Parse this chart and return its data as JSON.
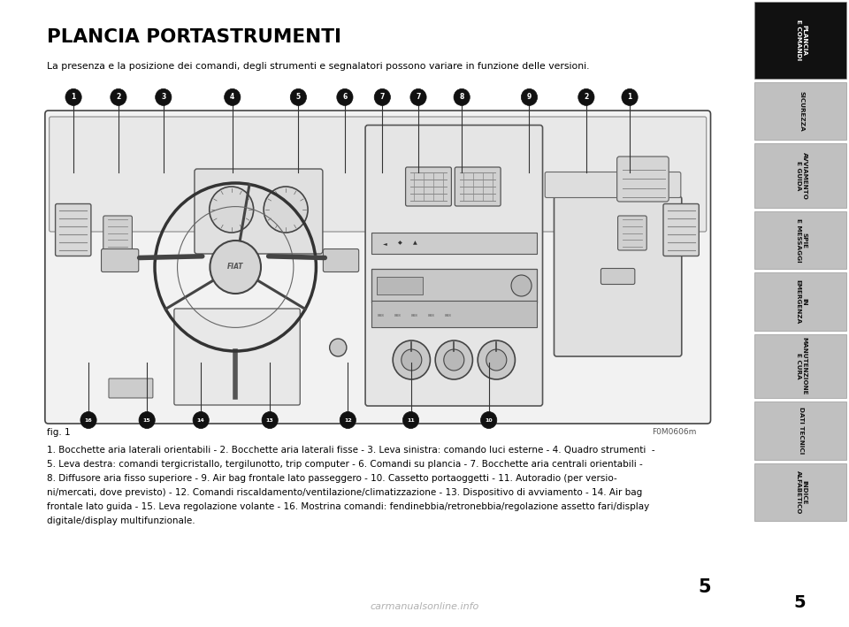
{
  "title": "PLANCIA PORTASTRUMENTI",
  "subtitle": "La presenza e la posizione dei comandi, degli strumenti e segnalatori possono variare in funzione delle versioni.",
  "fig_label": "fig. 1",
  "figure_code": "F0M0606m",
  "desc_line1": "1. Bocchette aria laterali orientabili - 2. Bocchette aria laterali fisse - 3. Leva sinistra: comando luci esterne - 4. Quadro strumenti  -",
  "desc_line2": "5. Leva destra: comandi tergicristallo, tergilunotto, trip computer - 6. Comandi su plancia - 7. Bocchette aria centrali orientabili -",
  "desc_line3": "8. Diffusore aria fisso superiore - 9. Air bag frontale lato passeggero - 10. Cassetto portaoggetti - 11. Autoradio (per versio-",
  "desc_line4": "ni/mercati, dove previsto) - 12. Comandi riscaldamento/ventilazione/climatizzazione - 13. Dispositivo di avviamento - 14. Air bag",
  "desc_line5": "frontale lato guida - 15. Leva regolazione volante - 16. Mostrina comandi: fendinebbia/retronebbia/regolazione assetto fari/display",
  "desc_line6": "digitale/display multifunzionale.",
  "sidebar_items": [
    {
      "label": "PLANCIA\nE COMANDI",
      "active": true
    },
    {
      "label": "SICUREZZA",
      "active": false
    },
    {
      "label": "AVVIAMENTO\nE GUIDA",
      "active": false
    },
    {
      "label": "SPIE\nE MESSAGGI",
      "active": false
    },
    {
      "label": "IN\nEMERGENZA",
      "active": false
    },
    {
      "label": "MANUTENZIONE\nE CURA",
      "active": false
    },
    {
      "label": "DATI TECNICI",
      "active": false
    },
    {
      "label": "INDICE\nALFABETICO",
      "active": false
    }
  ],
  "page_number": "5",
  "bg_color": "#ffffff",
  "sidebar_active_bg": "#111111",
  "sidebar_active_fg": "#ffffff",
  "sidebar_inactive_bg": "#c0c0c0",
  "sidebar_inactive_fg": "#111111",
  "title_color": "#000000",
  "text_color": "#000000",
  "callout_top": [
    {
      "num": "1",
      "xf": 0.098,
      "yf": 0.845
    },
    {
      "num": "2",
      "xf": 0.158,
      "yf": 0.845
    },
    {
      "num": "3",
      "xf": 0.218,
      "yf": 0.845
    },
    {
      "num": "4",
      "xf": 0.31,
      "yf": 0.845
    },
    {
      "num": "5",
      "xf": 0.398,
      "yf": 0.845
    },
    {
      "num": "6",
      "xf": 0.46,
      "yf": 0.845
    },
    {
      "num": "7",
      "xf": 0.51,
      "yf": 0.845
    },
    {
      "num": "7",
      "xf": 0.558,
      "yf": 0.845
    },
    {
      "num": "8",
      "xf": 0.616,
      "yf": 0.845
    },
    {
      "num": "9",
      "xf": 0.706,
      "yf": 0.845
    },
    {
      "num": "2",
      "xf": 0.782,
      "yf": 0.845
    },
    {
      "num": "1",
      "xf": 0.84,
      "yf": 0.845
    }
  ],
  "callout_bottom": [
    {
      "num": "16",
      "xf": 0.118,
      "yf": 0.33
    },
    {
      "num": "15",
      "xf": 0.196,
      "yf": 0.33
    },
    {
      "num": "14",
      "xf": 0.268,
      "yf": 0.33
    },
    {
      "num": "13",
      "xf": 0.36,
      "yf": 0.33
    },
    {
      "num": "12",
      "xf": 0.464,
      "yf": 0.33
    },
    {
      "num": "11",
      "xf": 0.548,
      "yf": 0.33
    },
    {
      "num": "10",
      "xf": 0.652,
      "yf": 0.33
    }
  ]
}
